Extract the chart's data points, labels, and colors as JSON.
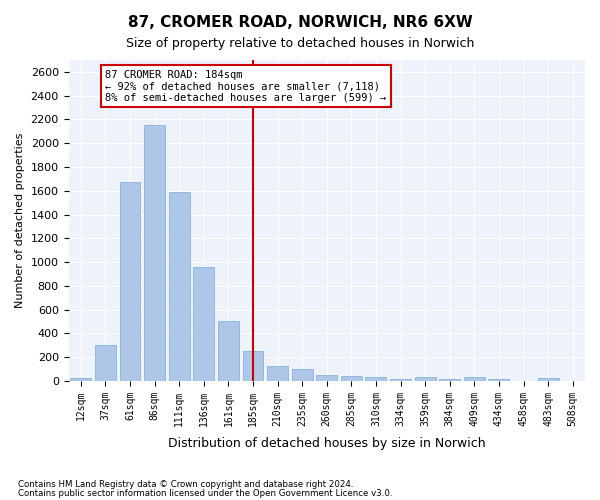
{
  "title1": "87, CROMER ROAD, NORWICH, NR6 6XW",
  "title2": "Size of property relative to detached houses in Norwich",
  "xlabel": "Distribution of detached houses by size in Norwich",
  "ylabel": "Number of detached properties",
  "footnote1": "Contains HM Land Registry data © Crown copyright and database right 2024.",
  "footnote2": "Contains public sector information licensed under the Open Government Licence v3.0.",
  "bar_labels": [
    "12sqm",
    "37sqm",
    "61sqm",
    "86sqm",
    "111sqm",
    "136sqm",
    "161sqm",
    "185sqm",
    "210sqm",
    "235sqm",
    "260sqm",
    "285sqm",
    "310sqm",
    "334sqm",
    "359sqm",
    "384sqm",
    "409sqm",
    "434sqm",
    "458sqm",
    "483sqm",
    "508sqm"
  ],
  "bar_values": [
    25,
    300,
    1670,
    2150,
    1590,
    960,
    505,
    250,
    125,
    100,
    50,
    40,
    35,
    20,
    30,
    20,
    30,
    18,
    2,
    25,
    2
  ],
  "bar_color": "#aec6e8",
  "bar_edge_color": "#7aadd4",
  "vline_color": "#cc0000",
  "ylim": [
    0,
    2700
  ],
  "yticks": [
    0,
    200,
    400,
    600,
    800,
    1000,
    1200,
    1400,
    1600,
    1800,
    2000,
    2200,
    2400,
    2600
  ],
  "annotation_line1": "87 CROMER ROAD: 184sqm",
  "annotation_line2": "← 92% of detached houses are smaller (7,118)",
  "annotation_line3": "8% of semi-detached houses are larger (599) →",
  "annotation_box_color": "#ffffff",
  "annotation_box_edge_color": "#cc0000",
  "plot_bg_color": "#eef2fb"
}
